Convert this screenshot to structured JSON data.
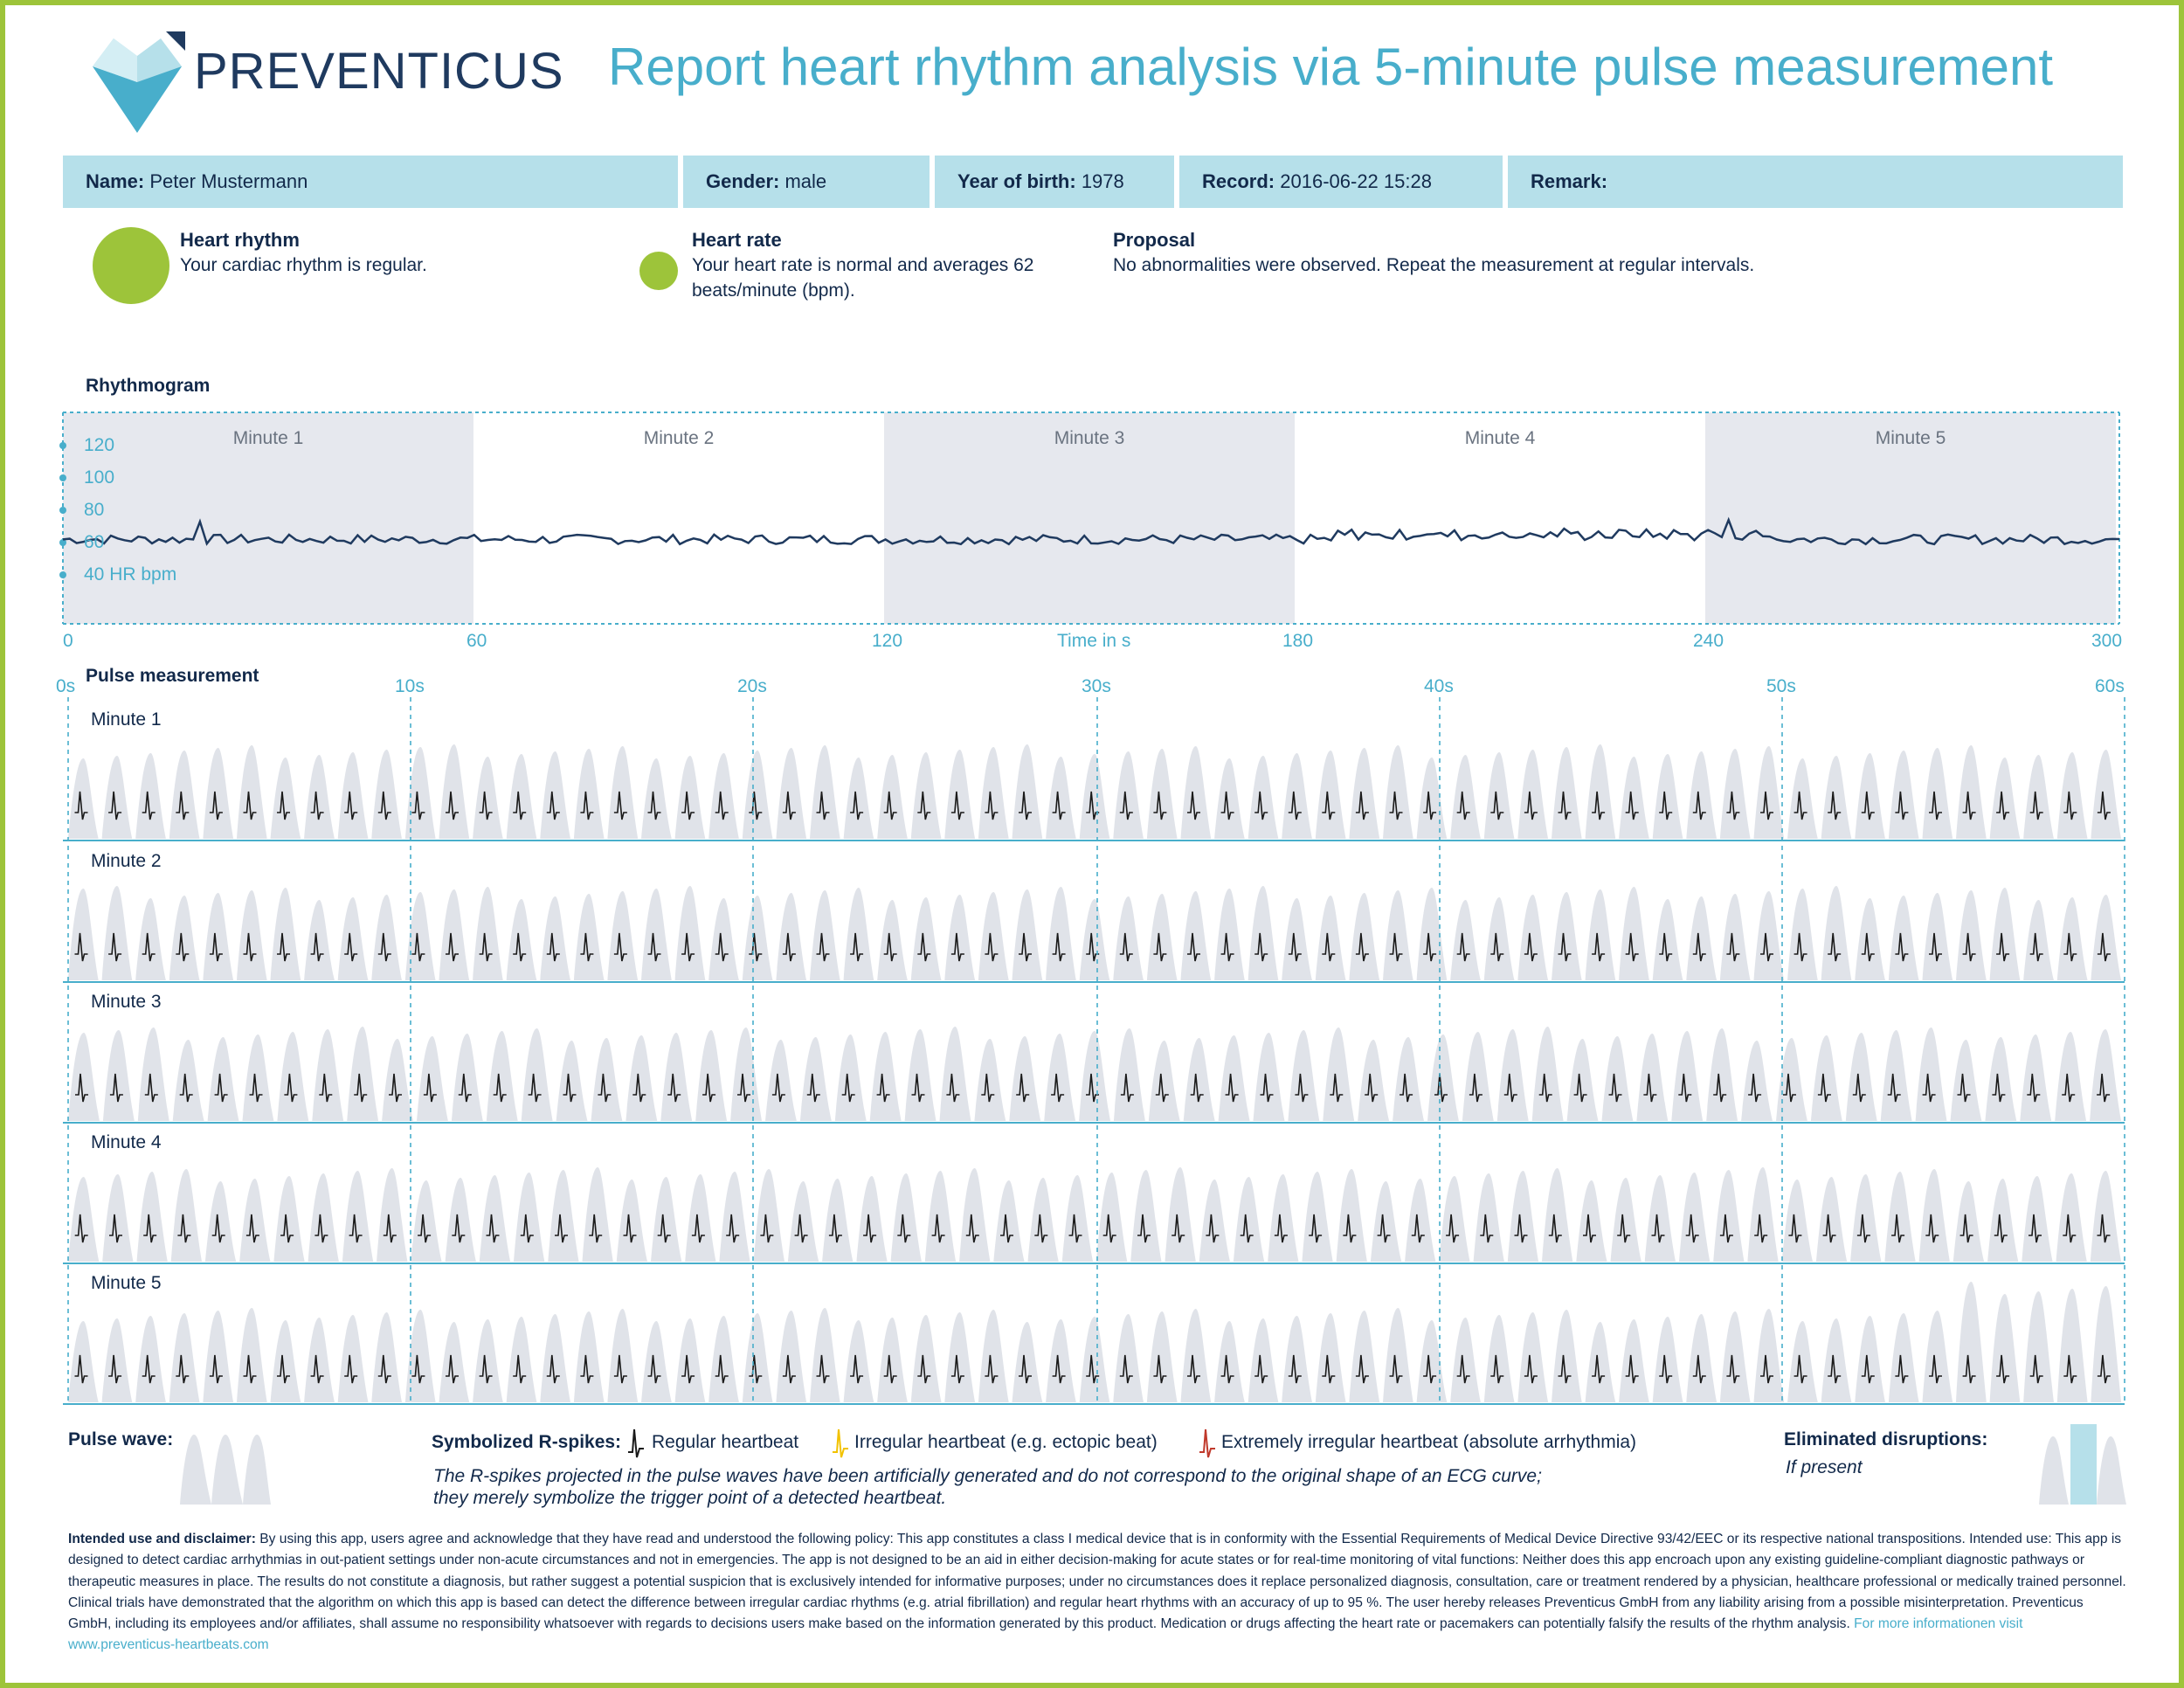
{
  "header": {
    "logo_text": "PREVENTICUS",
    "title": "Report heart rhythm analysis via 5-minute pulse measurement"
  },
  "patient": {
    "name_label": "Name:",
    "name": "Peter Mustermann",
    "gender_label": "Gender:",
    "gender": "male",
    "birth_label": "Year of birth:",
    "birth": "1978",
    "record_label": "Record:",
    "record": "2016-06-22 15:28",
    "remark_label": "Remark:",
    "remark": ""
  },
  "summary": {
    "rhythm_title": "Heart rhythm",
    "rhythm_text": "Your cardiac rhythm is regular.",
    "rate_title": "Heart rate",
    "rate_text_1": "Your heart rate is normal and averages 62",
    "rate_text_2": "beats/minute (bpm).",
    "proposal_title": "Proposal",
    "proposal_text": "No abnormalities were observed. Repeat the measurement at regular intervals.",
    "status_color": "#9dc43a"
  },
  "rhythmogram": {
    "title": "Rhythmogram",
    "minutes": [
      "Minute 1",
      "Minute 2",
      "Minute 3",
      "Minute 4",
      "Minute 5"
    ],
    "y_ticks": [
      "120",
      "100",
      "80",
      "60"
    ],
    "y_unit_label": "40 HR bpm",
    "x_ticks": [
      "0",
      "60",
      "120",
      "180",
      "240",
      "300"
    ],
    "x_label": "Time in s"
  },
  "pulse": {
    "title": "Pulse measurement",
    "time_ticks": [
      "0s",
      "10s",
      "20s",
      "30s",
      "40s",
      "50s",
      "60s"
    ],
    "rows": [
      "Minute 1",
      "Minute 2",
      "Minute 3",
      "Minute 4",
      "Minute 5"
    ]
  },
  "legend": {
    "pulse_wave_label": "Pulse wave:",
    "rspikes_label": "Symbolized R-spikes:",
    "regular": "Regular heartbeat",
    "irregular": "Irregular heartbeat (e.g. ectopic beat)",
    "extreme": "Extremely irregular heartbeat (absolute arrhythmia)",
    "note_1": "The R-spikes projected in the pulse waves have been artificially generated and do not correspond to the original shape of an ECG curve;",
    "note_2": "they merely symbolize the trigger point of a detected heartbeat.",
    "eliminated_label": "Eliminated disruptions:",
    "eliminated_note": "If present",
    "regular_color": "#1a1a1a",
    "irregular_color": "#f2c200",
    "extreme_color": "#c0392b"
  },
  "disclaimer": {
    "label": "Intended use and disclaimer:",
    "text": "By using this app, users agree and acknowledge that they have read and understood the following policy: This app constitutes a class I medical device that is in conformity with the Essential Requirements of Medical Device Directive 93/42/EEC or its respective national transpositions. Intended use: This app is designed to detect cardiac arrhythmias in out-patient settings under non-acute circumstances and not in emergencies. The app is not designed to be an aid in either decision-making for acute states or for real-time monitoring of vital functions: Neither does this app encroach upon any existing guideline-compliant diagnostic pathways or therapeutic measures in place. The results do not constitute a diagnosis, but rather suggest a potential suspicion that is exclusively intended for informative purposes; under no circumstances does it replace personalized diagnosis, consultation, care or treatment rendered by a physician, healthcare professional or medically trained personnel. Clinical trials have demonstrated that the algorithm on which this app is based can detect the difference between irregular cardiac rhythms (e.g. atrial fibrillation) and regular heart rhythms with an accuracy of up to 95 %. The user hereby releases Preventicus GmbH from any liability arising from a possible misinterpretation. Preventicus GmbH, including its employees and/or affiliates, shall assume no responsibility whatsoever with regards to decisions users make based on the information generated by this product. Medication or drugs affecting the heart rate or pacemakers can potentially falsify the results of the rhythm analysis.",
    "link": "For more informationen visit www.preventicus-heartbeats.com"
  },
  "colors": {
    "accent": "#48aecb",
    "header_bg": "#b6e0ea",
    "navy": "#12294a",
    "band_grey": "#e6e8ee",
    "frame": "#9dc43a"
  }
}
